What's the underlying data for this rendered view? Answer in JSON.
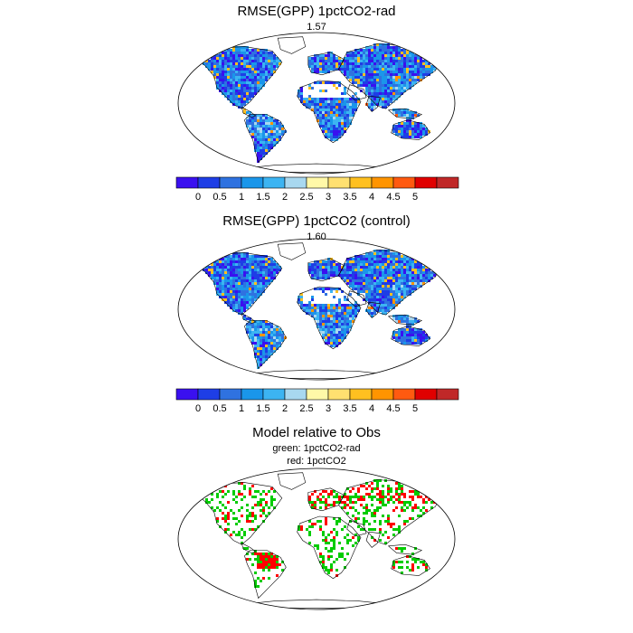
{
  "panels": [
    {
      "title": "RMSE(GPP) 1pctCO2-rad",
      "global_value": "1.57",
      "pattern": "rad"
    },
    {
      "title": "RMSE(GPP) 1pctCO2 (control)",
      "global_value": "1.60",
      "pattern": "control"
    },
    {
      "title": "Model relative to Obs",
      "legend_lines": [
        "green: 1pctCO2-rad",
        "red: 1pctCO2"
      ],
      "pattern": "diff",
      "category_colors": {
        "better_rad": "#00cc00",
        "better_control": "#ff0000"
      }
    }
  ],
  "colorbar": {
    "colors": [
      "#3a10f0",
      "#1e3ee6",
      "#2f72e0",
      "#1a96ea",
      "#3cb4f2",
      "#a8d8f0",
      "#fff8a8",
      "#ffe070",
      "#ffc020",
      "#ff9400",
      "#ff5a10",
      "#e00000",
      "#c02828"
    ],
    "labels": [
      "0",
      "0.5",
      "1",
      "1.5",
      "2",
      "2.5",
      "3",
      "3.5",
      "4",
      "4.5",
      "5"
    ]
  },
  "map_colors": {
    "outline": "#000000",
    "no_data": "#ffffff"
  }
}
